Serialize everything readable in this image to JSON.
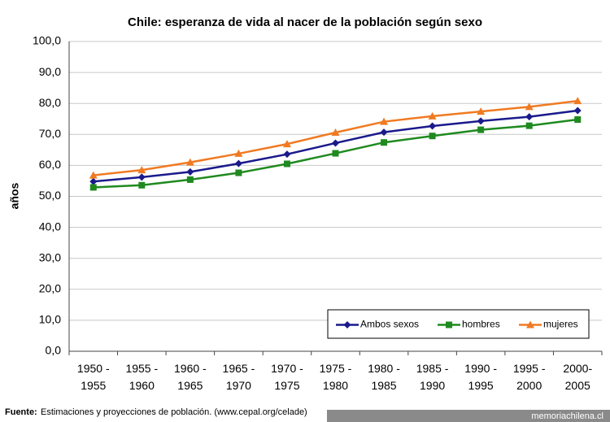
{
  "chart_data": {
    "type": "line",
    "title": "Chile: esperanza de vida al nacer de la población según sexo",
    "y_label": "años",
    "categories": [
      [
        "1950 -",
        "1955"
      ],
      [
        "1955 -",
        "1960"
      ],
      [
        "1960 -",
        "1965"
      ],
      [
        "1965 -",
        "1970"
      ],
      [
        "1970 -",
        "1975"
      ],
      [
        "1975 -",
        "1980"
      ],
      [
        "1980 -",
        "1985"
      ],
      [
        "1985 -",
        "1990"
      ],
      [
        "1990 -",
        "1995"
      ],
      [
        "1995 -",
        "2000"
      ],
      [
        "2000-",
        "2005"
      ]
    ],
    "series": [
      {
        "name": "Ambos sexos",
        "color": "#1a1a8c",
        "marker": "diamond",
        "values": [
          54.8,
          56.2,
          57.9,
          60.6,
          63.6,
          67.2,
          70.7,
          72.7,
          74.3,
          75.7,
          77.7
        ]
      },
      {
        "name": "hombres",
        "color": "#1f8a1f",
        "marker": "square",
        "values": [
          52.9,
          53.6,
          55.4,
          57.6,
          60.5,
          63.9,
          67.4,
          69.5,
          71.5,
          72.8,
          74.8
        ]
      },
      {
        "name": "mujeres",
        "color": "#f07a22",
        "marker": "triangle",
        "values": [
          56.8,
          58.5,
          61.0,
          63.8,
          66.9,
          70.6,
          74.1,
          75.9,
          77.4,
          78.9,
          80.8
        ]
      }
    ],
    "ylim": [
      0,
      100
    ],
    "yticks": [
      {
        "value": 0,
        "label": "0,0"
      },
      {
        "value": 10,
        "label": "10,0"
      },
      {
        "value": 20,
        "label": "20,0"
      },
      {
        "value": 30,
        "label": "30,0"
      },
      {
        "value": 40,
        "label": "40,0"
      },
      {
        "value": 50,
        "label": "50,0"
      },
      {
        "value": 60,
        "label": "60,0"
      },
      {
        "value": 70,
        "label": "70,0"
      },
      {
        "value": 80,
        "label": "80,0"
      },
      {
        "value": 90,
        "label": "90,0"
      },
      {
        "value": 100,
        "label": "100,0"
      }
    ],
    "grid": true,
    "legend": "lower right"
  },
  "footer": {
    "source_label": "Fuente:",
    "source_text": "Estimaciones y proyecciones de población. (www.cepal.org/celade)"
  },
  "watermark": "memoriachilena.cl"
}
